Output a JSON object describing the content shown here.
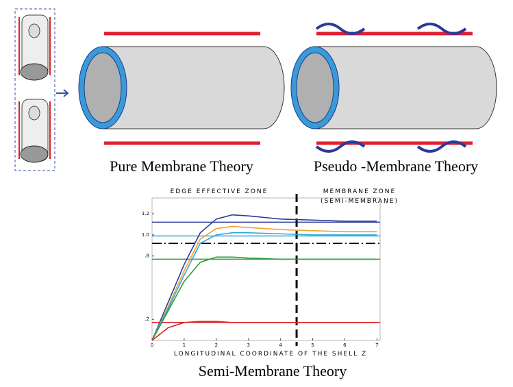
{
  "diagrams": [
    {
      "title": "Pure Membrane Theory"
    },
    {
      "title": "Pseudo -Membrane Theory"
    }
  ],
  "chart": {
    "type": "line",
    "title": "Semi-Membrane Theory",
    "zones": [
      "EDGE EFFECTIVE ZONE",
      "MEMBRANE ZONE",
      "(SEMI-MEMBRANE)"
    ],
    "xlabel": "LONGITUDINAL COORDINATE OF THE SHELL Z",
    "x": [
      0,
      0.5,
      1,
      1.5,
      2,
      2.5,
      3,
      4,
      5,
      6,
      7
    ],
    "xlim": [
      0,
      7.1
    ],
    "ylim": [
      0,
      1.35
    ],
    "xticks": [
      0,
      1,
      2,
      3,
      4,
      5,
      6,
      7
    ],
    "yticks": [
      {
        "value": 0.2,
        "label": ".2"
      },
      {
        "value": 0.8,
        "label": ".8"
      },
      {
        "value": 1,
        "label": "1.0"
      },
      {
        "value": 1.2,
        "label": "1.2"
      }
    ],
    "zone_boundary": 4.5,
    "series": [
      {
        "color": "#2b3b9a",
        "values": [
          0,
          0.36,
          0.72,
          1.02,
          1.15,
          1.19,
          1.18,
          1.15,
          1.14,
          1.13,
          1.13
        ]
      },
      {
        "color": "#f0a030",
        "values": [
          0,
          0.32,
          0.66,
          0.96,
          1.06,
          1.08,
          1.07,
          1.05,
          1.04,
          1.03,
          1.03
        ]
      },
      {
        "color": "#30a8d8",
        "values": [
          0,
          0.3,
          0.62,
          0.92,
          1.0,
          1.02,
          1.02,
          1.01,
          1.0,
          1.0,
          1.0
        ]
      },
      {
        "color": "#2a9a3a",
        "values": [
          0,
          0.28,
          0.56,
          0.74,
          0.79,
          0.79,
          0.78,
          0.77,
          0.77,
          0.77,
          0.77
        ]
      },
      {
        "color": "#e02020",
        "values": [
          0,
          0.12,
          0.17,
          0.18,
          0.18,
          0.17,
          0.17,
          0.17,
          0.17,
          0.17,
          0.17
        ]
      }
    ],
    "reference_lines": [
      {
        "color": "#2b3b9a",
        "value": 1.12
      },
      {
        "color": "#30a8d8",
        "value": 0.99
      },
      {
        "color": "#2a9a3a",
        "value": 0.77
      },
      {
        "color": "#e02020",
        "value": 0.17
      },
      {
        "color": "#000000",
        "value": 0.92
      }
    ]
  }
}
